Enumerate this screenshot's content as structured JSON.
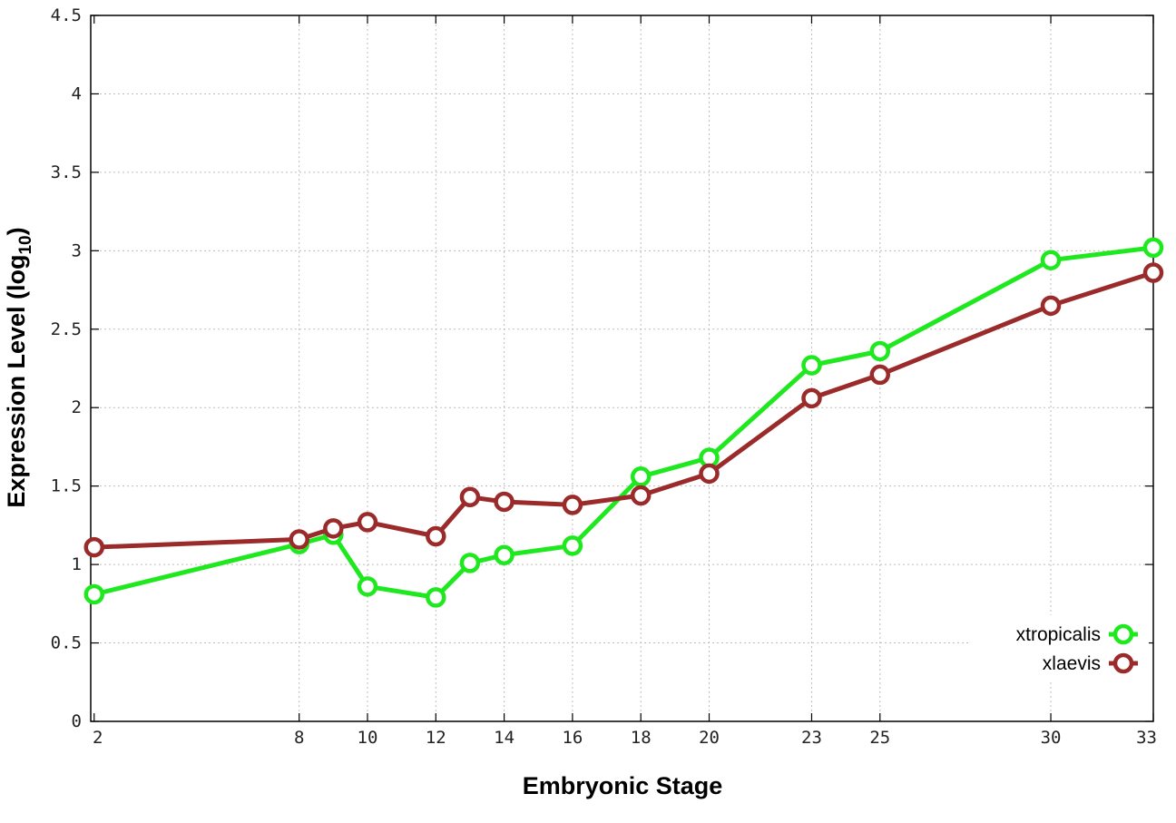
{
  "chart_data": {
    "type": "line",
    "xlabel": "Embryonic Stage",
    "ylabel_main": "Expression Level (log",
    "ylabel_sub": "10",
    "ylabel_close": ")",
    "x_ticks": [
      2,
      8,
      10,
      12,
      14,
      16,
      18,
      20,
      23,
      25,
      30,
      33
    ],
    "y_ticks": [
      "0",
      "0.5",
      "1",
      "1.5",
      "2",
      "2.5",
      "3",
      "3.5",
      "4",
      "4.5"
    ],
    "xlim": [
      1.9,
      33
    ],
    "ylim": [
      0,
      4.5
    ],
    "grid": true,
    "legend_position": "bottom-right",
    "series": [
      {
        "name": "xtropicalis",
        "color": "#1ee81e",
        "x": [
          2,
          8,
          9,
          10,
          12,
          13,
          14,
          16,
          18,
          20,
          23,
          25,
          30,
          33
        ],
        "y": [
          0.81,
          1.13,
          1.19,
          0.86,
          0.79,
          1.01,
          1.06,
          1.12,
          1.56,
          1.68,
          2.27,
          2.36,
          2.94,
          3.02
        ]
      },
      {
        "name": "xlaevis",
        "color": "#9b2b2b",
        "x": [
          2,
          8,
          9,
          10,
          12,
          13,
          14,
          16,
          18,
          20,
          23,
          25,
          30,
          33
        ],
        "y": [
          1.11,
          1.16,
          1.23,
          1.27,
          1.18,
          1.43,
          1.4,
          1.38,
          1.44,
          1.58,
          2.06,
          2.21,
          2.65,
          2.86
        ]
      }
    ]
  }
}
